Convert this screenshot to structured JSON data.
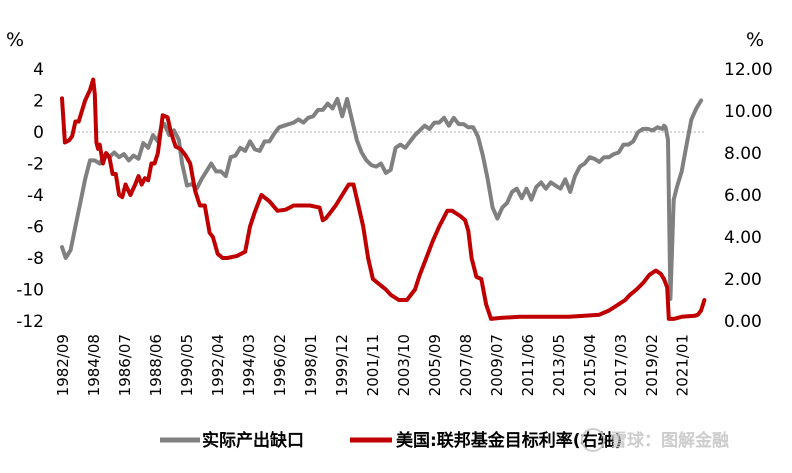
{
  "chart_data": {
    "type": "line",
    "left_unit": "%",
    "right_unit": "%",
    "y_left": {
      "ylim": [
        -12,
        4
      ],
      "ticks": [
        "4",
        "2",
        "0",
        "-2",
        "-4",
        "-6",
        "-8",
        "-10",
        "-12"
      ]
    },
    "y_right": {
      "ylim": [
        0,
        12
      ],
      "ticks": [
        "12.00",
        "10.00",
        "8.00",
        "6.00",
        "4.00",
        "2.00",
        "0.00"
      ]
    },
    "x_tick_labels": [
      "1982/09",
      "1984/08",
      "1986/07",
      "1988/06",
      "1990/05",
      "1992/04",
      "1994/03",
      "1996/02",
      "1998/01",
      "1999/12",
      "2001/11",
      "2003/10",
      "2005/09",
      "2007/08",
      "2009/07",
      "2011/06",
      "2013/05",
      "2015/04",
      "2017/03",
      "2019/02",
      "2021/01"
    ],
    "x_range": [
      1982.67,
      2022.5
    ],
    "zero_line": true,
    "legend_position": "bottom",
    "series": [
      {
        "name": "实际产出缺口",
        "axis": "left",
        "color": "#808080",
        "x": [
          1982.67,
          1982.9,
          1983.2,
          1983.5,
          1983.8,
          1984.1,
          1984.4,
          1984.7,
          1985.0,
          1985.3,
          1985.6,
          1985.9,
          1986.2,
          1986.5,
          1986.8,
          1987.1,
          1987.4,
          1987.7,
          1988.0,
          1988.3,
          1988.6,
          1988.8,
          1989.0,
          1989.3,
          1989.6,
          1989.9,
          1990.1,
          1990.4,
          1990.7,
          1991.0,
          1991.3,
          1991.6,
          1991.9,
          1992.2,
          1992.5,
          1992.8,
          1993.1,
          1993.4,
          1993.7,
          1994.0,
          1994.3,
          1994.6,
          1994.9,
          1995.2,
          1995.5,
          1995.8,
          1996.1,
          1996.4,
          1996.7,
          1997.0,
          1997.3,
          1997.6,
          1997.9,
          1998.2,
          1998.5,
          1998.8,
          1999.1,
          1999.4,
          1999.7,
          2000.0,
          2000.3,
          2000.6,
          2000.9,
          2001.2,
          2001.5,
          2001.8,
          2002.1,
          2002.4,
          2002.7,
          2003.0,
          2003.3,
          2003.6,
          2003.9,
          2004.2,
          2004.5,
          2004.8,
          2005.1,
          2005.4,
          2005.7,
          2006.0,
          2006.3,
          2006.6,
          2006.9,
          2007.2,
          2007.5,
          2007.8,
          2008.1,
          2008.4,
          2008.7,
          2009.0,
          2009.3,
          2009.6,
          2009.9,
          2010.2,
          2010.5,
          2010.8,
          2011.1,
          2011.4,
          2011.7,
          2012.0,
          2012.3,
          2012.6,
          2012.9,
          2013.2,
          2013.5,
          2013.8,
          2014.1,
          2014.4,
          2014.7,
          2015.0,
          2015.3,
          2015.6,
          2015.9,
          2016.2,
          2016.5,
          2016.8,
          2017.1,
          2017.4,
          2017.7,
          2018.0,
          2018.3,
          2018.6,
          2018.9,
          2019.2,
          2019.5,
          2019.8,
          2019.9,
          2020.0,
          2020.15,
          2020.3,
          2020.5,
          2020.7,
          2021.0,
          2021.3,
          2021.6,
          2021.9,
          2022.2
        ],
        "y": [
          -7.3,
          -8.0,
          -7.5,
          -6.0,
          -4.5,
          -3.0,
          -1.8,
          -1.8,
          -2.0,
          -1.5,
          -1.6,
          -1.3,
          -1.6,
          -1.4,
          -1.8,
          -1.5,
          -1.7,
          -0.7,
          -1.0,
          -0.2,
          -0.6,
          0.3,
          0.5,
          -0.2,
          0.1,
          -0.5,
          -2.0,
          -3.4,
          -3.3,
          -3.6,
          -3.0,
          -2.5,
          -2.0,
          -2.5,
          -2.5,
          -2.8,
          -1.6,
          -1.5,
          -1.0,
          -1.2,
          -0.6,
          -1.1,
          -1.2,
          -0.6,
          -0.6,
          -0.1,
          0.3,
          0.4,
          0.5,
          0.6,
          0.8,
          0.6,
          0.9,
          1.0,
          1.4,
          1.4,
          1.8,
          1.5,
          2.1,
          1.0,
          2.1,
          0.8,
          -0.5,
          -1.3,
          -1.8,
          -2.1,
          -2.2,
          -2.0,
          -2.6,
          -2.4,
          -1.0,
          -0.8,
          -1.0,
          -0.6,
          -0.2,
          0.1,
          0.4,
          0.2,
          0.6,
          0.6,
          0.9,
          0.4,
          0.9,
          0.5,
          0.5,
          0.3,
          0.3,
          -0.3,
          -1.5,
          -3.0,
          -4.8,
          -5.5,
          -4.8,
          -4.5,
          -3.8,
          -3.6,
          -4.2,
          -3.6,
          -4.3,
          -3.5,
          -3.2,
          -3.6,
          -3.2,
          -3.4,
          -3.6,
          -3.0,
          -3.8,
          -2.8,
          -2.2,
          -2.0,
          -1.6,
          -1.7,
          -1.9,
          -1.6,
          -1.6,
          -1.4,
          -1.3,
          -0.8,
          -0.8,
          -0.6,
          0.0,
          0.2,
          0.2,
          0.1,
          0.3,
          0.2,
          0.4,
          0.3,
          -0.5,
          -10.6,
          -4.3,
          -3.5,
          -2.5,
          -0.8,
          0.8,
          1.5,
          2.0
        ]
      },
      {
        "name": "美国:联邦基金目标利率(右轴)",
        "axis": "right",
        "color": "#c00000",
        "x": [
          1982.67,
          1982.85,
          1983.1,
          1983.3,
          1983.5,
          1983.7,
          1983.9,
          1984.1,
          1984.4,
          1984.6,
          1984.7,
          1984.8,
          1984.9,
          1985.0,
          1985.2,
          1985.4,
          1985.6,
          1985.8,
          1986.0,
          1986.2,
          1986.4,
          1986.6,
          1986.9,
          1987.2,
          1987.4,
          1987.6,
          1987.8,
          1988.0,
          1988.2,
          1988.4,
          1988.6,
          1988.9,
          1989.2,
          1989.4,
          1989.7,
          1990.0,
          1990.3,
          1990.6,
          1990.9,
          1991.2,
          1991.5,
          1991.8,
          1992.0,
          1992.3,
          1992.6,
          1992.9,
          1993.5,
          1994.0,
          1994.3,
          1994.6,
          1995.0,
          1995.5,
          1996.0,
          1996.5,
          1997.0,
          1997.5,
          1998.0,
          1998.6,
          1998.8,
          1999.0,
          1999.3,
          1999.6,
          2000.0,
          2000.4,
          2000.7,
          2001.0,
          2001.3,
          2001.6,
          2001.9,
          2002.3,
          2002.7,
          2003.0,
          2003.5,
          2004.0,
          2004.5,
          2004.8,
          2005.2,
          2005.6,
          2006.0,
          2006.5,
          2006.8,
          2007.3,
          2007.6,
          2007.8,
          2008.0,
          2008.3,
          2008.6,
          2008.9,
          2009.2,
          2009.8,
          2011.0,
          2012.0,
          2013.0,
          2014.0,
          2015.0,
          2015.9,
          2016.5,
          2017.0,
          2017.5,
          2017.8,
          2018.2,
          2018.6,
          2019.0,
          2019.4,
          2019.7,
          2019.9,
          2020.1,
          2020.2,
          2020.5,
          2021.0,
          2021.8,
          2022.0,
          2022.2,
          2022.4
        ],
        "y": [
          10.6,
          8.5,
          8.6,
          8.8,
          9.5,
          9.5,
          10.0,
          10.5,
          11.0,
          11.5,
          10.8,
          8.5,
          8.2,
          8.4,
          7.5,
          8.0,
          7.8,
          7.0,
          7.0,
          6.0,
          5.9,
          6.5,
          6.0,
          6.5,
          6.9,
          6.5,
          6.8,
          6.7,
          7.5,
          7.5,
          8.0,
          9.8,
          9.7,
          9.0,
          8.3,
          8.2,
          7.9,
          7.5,
          6.2,
          5.5,
          5.5,
          4.2,
          4.0,
          3.2,
          3.0,
          3.0,
          3.1,
          3.3,
          4.5,
          5.2,
          6.0,
          5.7,
          5.25,
          5.3,
          5.5,
          5.5,
          5.5,
          5.4,
          4.8,
          4.9,
          5.2,
          5.5,
          6.0,
          6.5,
          6.5,
          5.5,
          4.5,
          3.0,
          2.0,
          1.75,
          1.5,
          1.25,
          1.0,
          1.0,
          1.5,
          2.2,
          3.0,
          3.8,
          4.5,
          5.25,
          5.25,
          5.0,
          4.8,
          4.3,
          3.0,
          2.1,
          2.0,
          0.8,
          0.1,
          0.15,
          0.2,
          0.2,
          0.2,
          0.2,
          0.25,
          0.3,
          0.5,
          0.75,
          1.0,
          1.25,
          1.5,
          1.8,
          2.2,
          2.4,
          2.25,
          2.0,
          1.6,
          0.1,
          0.1,
          0.2,
          0.25,
          0.3,
          0.5,
          1.0
        ]
      }
    ]
  },
  "legend": {
    "items": [
      {
        "label": "实际产出缺口",
        "color": "#808080"
      },
      {
        "label": "美国:联邦基金目标利率(右轴)",
        "color": "#c00000"
      }
    ]
  },
  "watermark": {
    "text": "雪球：图解金融"
  }
}
